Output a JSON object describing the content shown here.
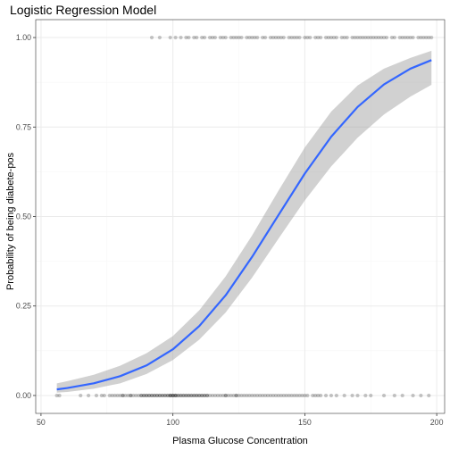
{
  "chart_data": {
    "type": "scatter",
    "title": "Logistic Regression Model",
    "xlabel": "Plasma Glucose Concentration",
    "ylabel": "Probability of being diabete-pos",
    "xlim": [
      48,
      203
    ],
    "ylim": [
      -0.05,
      1.05
    ],
    "x_ticks": [
      50,
      100,
      150,
      200
    ],
    "x_tick_labels": [
      "50",
      "100",
      "150",
      "200"
    ],
    "y_ticks": [
      0,
      0.25,
      0.5,
      0.75,
      1.0
    ],
    "y_tick_labels": [
      "0.00",
      "0.25",
      "0.50",
      "0.75",
      "1.00"
    ],
    "grid": true,
    "colors": {
      "panel_border": "#333333",
      "grid_major": "#ebebeb",
      "grid_minor": "#f5f5f5",
      "points": "#000000",
      "fit_line": "#3366ff",
      "ribbon": "#999999"
    },
    "points_neg": [
      56,
      57,
      65,
      68,
      71,
      73,
      74,
      76,
      77,
      78,
      79,
      80,
      81,
      81,
      82,
      83,
      84,
      84,
      85,
      86,
      87,
      88,
      88,
      89,
      89,
      90,
      90,
      91,
      91,
      92,
      92,
      93,
      93,
      94,
      94,
      95,
      95,
      96,
      96,
      97,
      97,
      98,
      98,
      99,
      99,
      99,
      100,
      100,
      100,
      101,
      101,
      101,
      102,
      102,
      103,
      103,
      104,
      104,
      105,
      105,
      106,
      106,
      107,
      107,
      108,
      108,
      109,
      109,
      110,
      110,
      111,
      111,
      112,
      112,
      113,
      113,
      114,
      115,
      116,
      117,
      118,
      119,
      120,
      120,
      121,
      122,
      123,
      124,
      124,
      125,
      126,
      127,
      128,
      129,
      130,
      131,
      132,
      133,
      134,
      135,
      136,
      137,
      138,
      139,
      140,
      141,
      142,
      143,
      144,
      145,
      146,
      147,
      148,
      149,
      150,
      151,
      153,
      154,
      155,
      156,
      158,
      160,
      162,
      165,
      168,
      170,
      173,
      175,
      180,
      184,
      187,
      191,
      194,
      197
    ],
    "points_pos": [
      92,
      95,
      99,
      101,
      103,
      105,
      106,
      108,
      109,
      111,
      112,
      114,
      115,
      116,
      118,
      119,
      120,
      122,
      123,
      124,
      125,
      126,
      128,
      129,
      130,
      131,
      132,
      134,
      135,
      137,
      138,
      139,
      140,
      141,
      142,
      144,
      145,
      146,
      147,
      148,
      150,
      151,
      152,
      154,
      155,
      156,
      158,
      159,
      160,
      161,
      162,
      164,
      165,
      166,
      168,
      169,
      170,
      171,
      172,
      173,
      174,
      175,
      176,
      177,
      178,
      179,
      180,
      181,
      183,
      184,
      186,
      187,
      188,
      189,
      190,
      191,
      193,
      194,
      195,
      196,
      197,
      198
    ],
    "fit": {
      "x": [
        56,
        60,
        70,
        80,
        90,
        100,
        110,
        120,
        130,
        140,
        150,
        160,
        170,
        180,
        190,
        198
      ],
      "y": [
        0.017,
        0.021,
        0.034,
        0.054,
        0.084,
        0.129,
        0.194,
        0.28,
        0.387,
        0.504,
        0.62,
        0.723,
        0.806,
        0.869,
        0.913,
        0.937
      ],
      "lower": [
        0.008,
        0.01,
        0.019,
        0.034,
        0.06,
        0.099,
        0.156,
        0.232,
        0.329,
        0.438,
        0.545,
        0.64,
        0.72,
        0.785,
        0.835,
        0.868
      ],
      "upper": [
        0.034,
        0.04,
        0.058,
        0.083,
        0.118,
        0.166,
        0.238,
        0.333,
        0.447,
        0.572,
        0.693,
        0.793,
        0.866,
        0.913,
        0.943,
        0.963
      ]
    }
  }
}
